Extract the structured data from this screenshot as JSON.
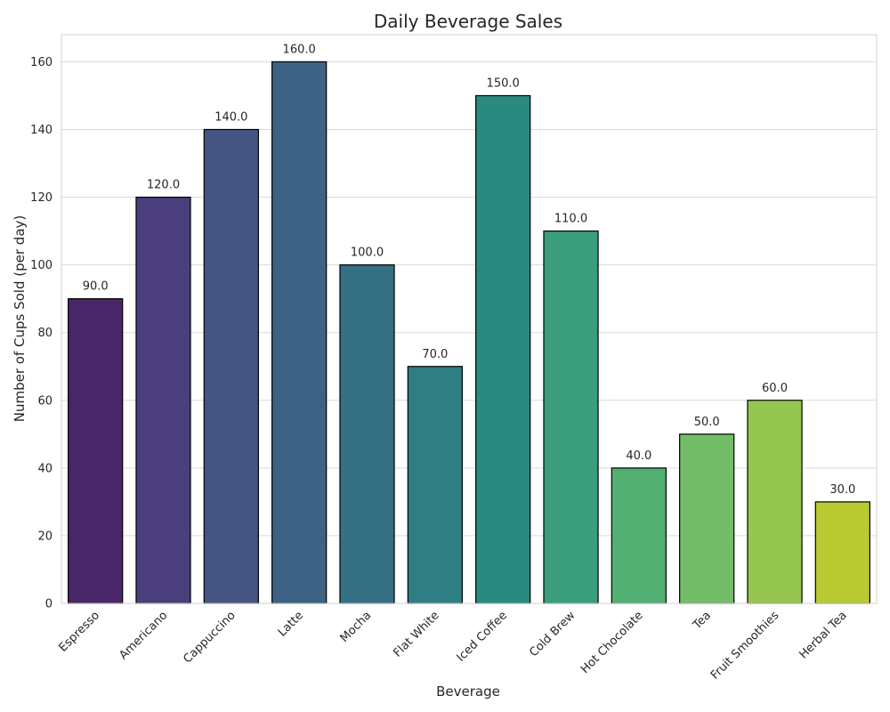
{
  "chart_data": {
    "type": "bar",
    "title": "Daily Beverage Sales",
    "xlabel": "Beverage",
    "ylabel": "Number of Cups Sold (per day)",
    "categories": [
      "Espresso",
      "Americano",
      "Cappuccino",
      "Latte",
      "Mocha",
      "Flat White",
      "Iced Coffee",
      "Cold Brew",
      "Hot Chocolate",
      "Tea",
      "Fruit Smoothies",
      "Herbal Tea"
    ],
    "values": [
      90,
      120,
      140,
      160,
      100,
      70,
      150,
      110,
      40,
      50,
      60,
      30
    ],
    "value_labels": [
      "90.0",
      "120.0",
      "140.0",
      "160.0",
      "100.0",
      "70.0",
      "150.0",
      "110.0",
      "40.0",
      "50.0",
      "60.0",
      "30.0"
    ],
    "colors": [
      "#472767",
      "#4a3f7c",
      "#465482",
      "#3d6284",
      "#367084",
      "#2f7e84",
      "#2a8a7f",
      "#3a9e7c",
      "#52b072",
      "#73bd68",
      "#94c650",
      "#b9c932"
    ],
    "ylim": [
      0,
      168
    ],
    "yticks": [
      0,
      20,
      40,
      60,
      80,
      100,
      120,
      140,
      160
    ],
    "grid": true,
    "grid_axis": "y",
    "legend": false
  }
}
